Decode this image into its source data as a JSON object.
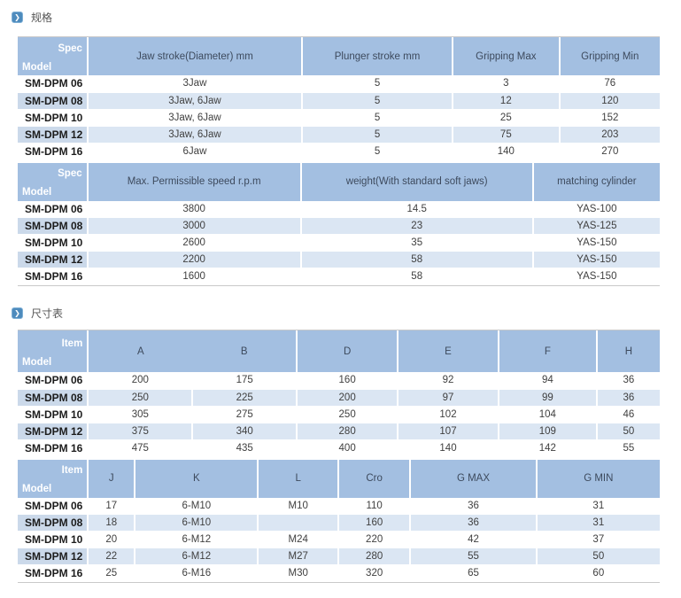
{
  "colors": {
    "header_bg": "#a3bfe1",
    "row_alt": "#dbe6f3",
    "model_alt": "#cbd9ea",
    "icon_bg": "#4e8bbd",
    "line": "#c9c9c9"
  },
  "icons": {
    "section_bullet": "❯"
  },
  "sections": [
    {
      "title": "规格",
      "tables": [
        {
          "corner_top": "Spec",
          "corner_bottom": "Model",
          "columns": [
            "Jaw stroke(Diameter) mm",
            "Plunger stroke mm",
            "Gripping Max",
            "Gripping Min"
          ],
          "rows": [
            {
              "model": "SM-DPM 06",
              "values": [
                "3Jaw",
                "5",
                "3",
                "76"
              ]
            },
            {
              "model": "SM-DPM 08",
              "values": [
                "3Jaw, 6Jaw",
                "5",
                "12",
                "120"
              ]
            },
            {
              "model": "SM-DPM 10",
              "values": [
                "3Jaw, 6Jaw",
                "5",
                "25",
                "152"
              ]
            },
            {
              "model": "SM-DPM 12",
              "values": [
                "3Jaw, 6Jaw",
                "5",
                "75",
                "203"
              ]
            },
            {
              "model": "SM-DPM 16",
              "values": [
                "6Jaw",
                "5",
                "140",
                "270"
              ]
            }
          ]
        },
        {
          "corner_top": "Spec",
          "corner_bottom": "Model",
          "columns": [
            "Max. Permissible speed r.p.m",
            "weight(With standard soft jaws)",
            "matching cylinder"
          ],
          "rows": [
            {
              "model": "SM-DPM 06",
              "values": [
                "3800",
                "14.5",
                "YAS-100"
              ]
            },
            {
              "model": "SM-DPM 08",
              "values": [
                "3000",
                "23",
                "YAS-125"
              ]
            },
            {
              "model": "SM-DPM 10",
              "values": [
                "2600",
                "35",
                "YAS-150"
              ]
            },
            {
              "model": "SM-DPM 12",
              "values": [
                "2200",
                "58",
                "YAS-150"
              ]
            },
            {
              "model": "SM-DPM 16",
              "values": [
                "1600",
                "58",
                "YAS-150"
              ]
            }
          ]
        }
      ]
    },
    {
      "title": "尺寸表",
      "tables": [
        {
          "corner_top": "Item",
          "corner_bottom": "Model",
          "columns": [
            "A",
            "B",
            "D",
            "E",
            "F",
            "H"
          ],
          "rows": [
            {
              "model": "SM-DPM 06",
              "values": [
                "200",
                "175",
                "160",
                "92",
                "94",
                "36"
              ]
            },
            {
              "model": "SM-DPM 08",
              "values": [
                "250",
                "225",
                "200",
                "97",
                "99",
                "36"
              ]
            },
            {
              "model": "SM-DPM 10",
              "values": [
                "305",
                "275",
                "250",
                "102",
                "104",
                "46"
              ]
            },
            {
              "model": "SM-DPM 12",
              "values": [
                "375",
                "340",
                "280",
                "107",
                "109",
                "50"
              ]
            },
            {
              "model": "SM-DPM 16",
              "values": [
                "475",
                "435",
                "400",
                "140",
                "142",
                "55"
              ]
            }
          ]
        },
        {
          "corner_top": "Item",
          "corner_bottom": "Model",
          "columns": [
            "J",
            "K",
            "L",
            "Cro",
            "G MAX",
            "G MIN"
          ],
          "rows": [
            {
              "model": "SM-DPM 06",
              "values": [
                "17",
                "6-M10",
                "M10",
                "110",
                "36",
                "31"
              ]
            },
            {
              "model": "SM-DPM 08",
              "values": [
                "18",
                "6-M10",
                "",
                "160",
                "36",
                "31"
              ]
            },
            {
              "model": "SM-DPM 10",
              "values": [
                "20",
                "6-M12",
                "M24",
                "220",
                "42",
                "37"
              ]
            },
            {
              "model": "SM-DPM 12",
              "values": [
                "22",
                "6-M12",
                "M27",
                "280",
                "55",
                "50"
              ]
            },
            {
              "model": "SM-DPM 16",
              "values": [
                "25",
                "6-M16",
                "M30",
                "320",
                "65",
                "60"
              ]
            }
          ]
        }
      ]
    }
  ]
}
